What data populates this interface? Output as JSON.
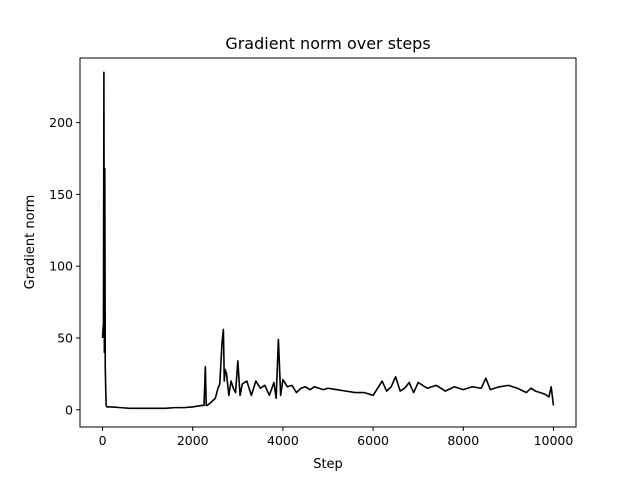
{
  "chart_data": {
    "type": "line",
    "title": "Gradient norm over steps",
    "xlabel": "Step",
    "ylabel": "Gradient norm",
    "xlim": [
      -500,
      10500
    ],
    "ylim": [
      -12,
      245
    ],
    "x_ticks": [
      0,
      2000,
      4000,
      6000,
      8000,
      10000
    ],
    "y_ticks": [
      0,
      50,
      100,
      150,
      200
    ],
    "grid": false,
    "legend": "none",
    "line_color": "#000000",
    "series": [
      {
        "x": [
          0,
          10,
          20,
          30,
          40,
          50,
          60,
          70,
          80,
          100,
          150,
          200,
          400,
          600,
          800,
          1000,
          1200,
          1400,
          1600,
          1800,
          2000,
          2200,
          2250,
          2280,
          2300,
          2320,
          2400,
          2500,
          2560,
          2600,
          2650,
          2680,
          2700,
          2720,
          2750,
          2800,
          2850,
          2900,
          2950,
          3000,
          3050,
          3100,
          3200,
          3300,
          3400,
          3500,
          3600,
          3700,
          3800,
          3850,
          3900,
          3950,
          4000,
          4100,
          4200,
          4300,
          4400,
          4500,
          4600,
          4700,
          4800,
          4900,
          5000,
          5200,
          5400,
          5600,
          5800,
          6000,
          6200,
          6300,
          6400,
          6500,
          6600,
          6700,
          6800,
          6900,
          7000,
          7200,
          7400,
          7600,
          7800,
          8000,
          8200,
          8400,
          8500,
          8600,
          8800,
          9000,
          9200,
          9400,
          9500,
          9600,
          9700,
          9800,
          9900,
          9950,
          10000
        ],
        "values": [
          50,
          56,
          60,
          235,
          40,
          168,
          30,
          15,
          3,
          2,
          2,
          2,
          1.5,
          1,
          1,
          1,
          1,
          1,
          1.5,
          1.5,
          2,
          3,
          3,
          30,
          3,
          3,
          5,
          8,
          15,
          18,
          47,
          56,
          20,
          28,
          25,
          10,
          20,
          15,
          12,
          34,
          10,
          18,
          20,
          10,
          20,
          15,
          17,
          10,
          19,
          8,
          49,
          10,
          21,
          16,
          17,
          12,
          15,
          16,
          14,
          16,
          15,
          14,
          15,
          14,
          13,
          12,
          12,
          10,
          20,
          13,
          16,
          23,
          13,
          15,
          19,
          12,
          19,
          15,
          17,
          13,
          16,
          14,
          16,
          15,
          22,
          14,
          16,
          17,
          15,
          12,
          15,
          13,
          12,
          11,
          9,
          16,
          3
        ]
      }
    ]
  }
}
